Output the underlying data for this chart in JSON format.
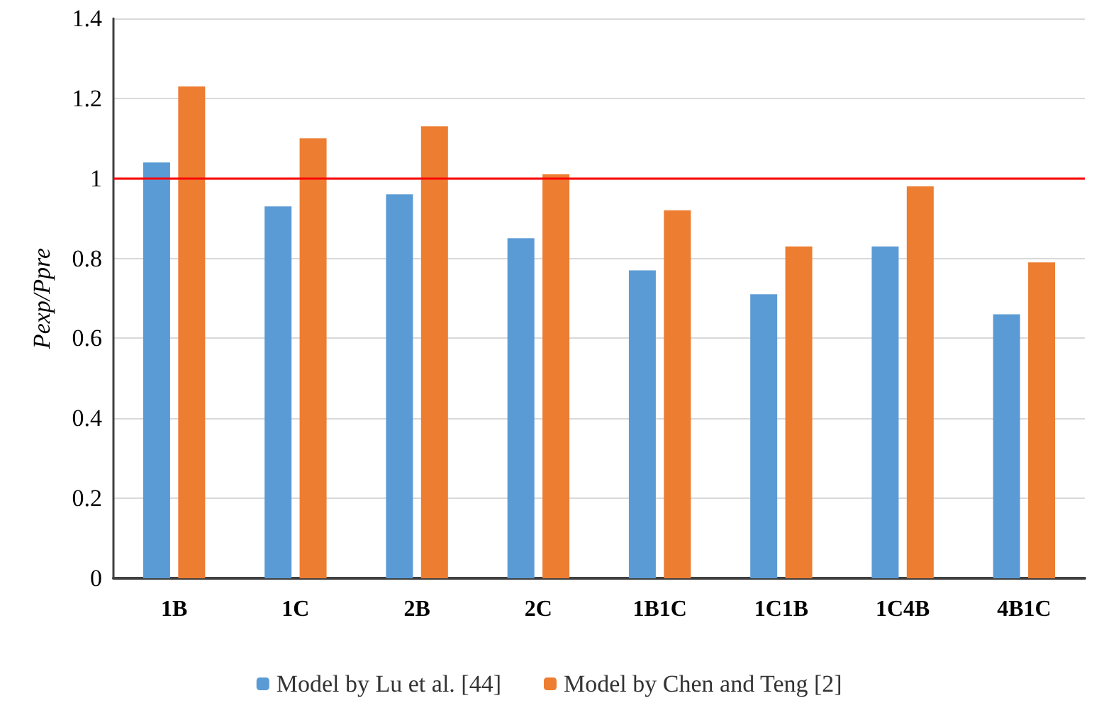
{
  "chart_data": {
    "type": "bar",
    "ylabel": "Pexp/Ppre",
    "categories": [
      "1B",
      "1C",
      "2B",
      "2C",
      "1B1C",
      "1C1B",
      "1C4B",
      "4B1C"
    ],
    "series": [
      {
        "name": "Model by Lu et al. [44]",
        "color": "#5b9bd5",
        "values": [
          1.04,
          0.93,
          0.96,
          0.85,
          0.77,
          0.71,
          0.83,
          0.66
        ]
      },
      {
        "name": "Model by Chen and Teng [2]",
        "color": "#ed7d31",
        "values": [
          1.23,
          1.1,
          1.13,
          1.01,
          0.92,
          0.83,
          0.98,
          0.79
        ]
      }
    ],
    "ylim": [
      0,
      1.4
    ],
    "yticks": [
      0,
      0.2,
      0.4,
      0.6,
      0.8,
      1,
      1.2,
      1.4
    ],
    "ref_lines": [
      {
        "axis": "y",
        "value": 1,
        "color": "#ff0000"
      }
    ],
    "grid": "y",
    "legend": "bottom"
  }
}
